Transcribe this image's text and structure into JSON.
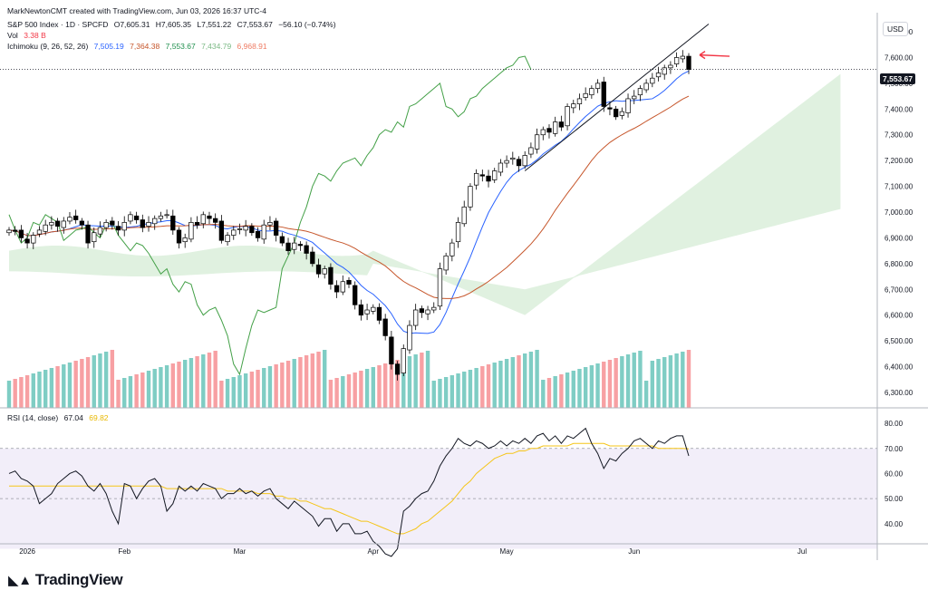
{
  "header": {
    "author_line": "MarkNewtonCMT created with TradingView.com, Jun 03, 2026 16:37 UTC-4",
    "symbol": "S&P 500 Index · 1D · SPCFD",
    "open": "O7,605.31",
    "high": "H7,605.35",
    "low": "L7,551.22",
    "close": "C7,553.67",
    "change": "−56.10 (−0.74%)",
    "vol_label": "Vol",
    "vol_value": "3.38 B",
    "ichimoku_label": "Ichimoku (9, 26, 52, 26)",
    "ichimoku_values": [
      "7,505.19",
      "7,364.38",
      "7,553.67",
      "7,434.79",
      "6,968.91"
    ],
    "rsi_label": "RSI (14, close)",
    "rsi_value": "67.04",
    "rsi_ma_value": "69.82"
  },
  "currency_button": "USD",
  "last_price_tag": "7,553.67",
  "logo_text": "TradingView",
  "colors": {
    "up_candle": "#ffffff",
    "down_candle": "#000000",
    "tenkan": "#2962ff",
    "kijun": "#c6562b",
    "chikou": "#43a047",
    "cloud_bull": "#a5d6a7",
    "cloud_bear": "#f8bbd0",
    "vol_up": "#7fcdc4",
    "vol_down": "#f7a0a3",
    "rsi_line": "#131722",
    "rsi_ma": "#f5c518",
    "rsi_band": "#ede7f6",
    "arrow": "#f23645"
  },
  "chart_data": [
    {
      "type": "candlestick",
      "title": "S&P 500 Index · 1D · SPCFD",
      "price_axis_ticks": [
        "7,700.00",
        "7,600.00",
        "7,500.00",
        "7,400.00",
        "7,300.00",
        "7,200.00",
        "7,100.00",
        "7,000.00",
        "6,900.00",
        "6,800.00",
        "6,700.00",
        "6,600.00",
        "6,500.00",
        "6,400.00",
        "6,300.00"
      ],
      "ylim": [
        6240,
        7760
      ],
      "time_axis_labels": [
        "2026",
        "Feb",
        "Mar",
        "Apr",
        "May",
        "Jun",
        "Jul"
      ],
      "close": [
        6930,
        6925,
        6900,
        6880,
        6910,
        6930,
        6950,
        6960,
        6945,
        6965,
        6980,
        6970,
        6950,
        6880,
        6920,
        6940,
        6960,
        6950,
        6930,
        6960,
        6990,
        6970,
        6940,
        6960,
        6975,
        6985,
        6990,
        6930,
        6880,
        6900,
        6960,
        6950,
        6990,
        6975,
        6960,
        6890,
        6910,
        6930,
        6935,
        6945,
        6920,
        6900,
        6950,
        6960,
        6910,
        6880,
        6850,
        6880,
        6870,
        6840,
        6800,
        6760,
        6780,
        6720,
        6690,
        6730,
        6720,
        6640,
        6600,
        6620,
        6630,
        6580,
        6520,
        6410,
        6370,
        6470,
        6560,
        6620,
        6610,
        6620,
        6630,
        6780,
        6830,
        6880,
        6960,
        7020,
        7100,
        7150,
        7140,
        7120,
        7160,
        7190,
        7200,
        7210,
        7180,
        7220,
        7250,
        7300,
        7320,
        7310,
        7350,
        7330,
        7410,
        7420,
        7440,
        7460,
        7480,
        7500,
        7410,
        7400,
        7370,
        7390,
        7440,
        7450,
        7480,
        7500,
        7520,
        7540,
        7560,
        7570,
        7600,
        7605,
        7553.67
      ],
      "volume_axis_note": "",
      "ichimoku": {
        "tenkan_last": 7505.19,
        "kijun_last": 7364.38,
        "chikou_last": 7553.67,
        "senkou_a_last": 7434.79,
        "senkou_b_last": 6968.91
      },
      "annotations": [
        "trendline along recent lows",
        "red arrow pointing to last candle"
      ]
    },
    {
      "type": "line",
      "title": "RSI (14, close)",
      "yticks": [
        "80.00",
        "70.00",
        "60.00",
        "50.00",
        "40.00"
      ],
      "ylim": [
        32,
        84
      ],
      "series": [
        {
          "name": "RSI",
          "values": [
            60,
            61,
            58,
            57,
            55,
            48,
            50,
            52,
            56,
            58,
            60,
            61,
            59,
            55,
            53,
            56,
            52,
            45,
            40,
            56,
            55,
            50,
            54,
            57,
            58,
            55,
            45,
            48,
            55,
            53,
            55,
            53,
            56,
            55,
            54,
            50,
            52,
            52,
            54,
            52,
            53,
            51,
            53,
            54,
            50,
            48,
            46,
            49,
            47,
            45,
            43,
            39,
            42,
            42,
            37,
            40,
            40,
            36,
            36,
            37,
            33,
            31,
            28,
            27,
            30,
            45,
            47,
            50,
            52,
            53,
            57,
            63,
            67,
            70,
            74,
            72,
            71,
            73,
            72,
            70,
            71,
            73,
            71,
            73,
            72,
            74,
            72,
            75,
            76,
            73,
            75,
            72,
            75,
            74,
            76,
            78,
            72,
            68,
            62,
            66,
            65,
            68,
            70,
            73,
            74,
            72,
            70,
            73,
            72,
            74,
            75,
            75,
            67.04
          ]
        },
        {
          "name": "RSI MA",
          "values": [
            55,
            55,
            55,
            55,
            55,
            55,
            55,
            55,
            55,
            55,
            55,
            55,
            55,
            55,
            55,
            55,
            55,
            55,
            55,
            55,
            55,
            55,
            55,
            55,
            55,
            55,
            54,
            54,
            54,
            54,
            54,
            54,
            54,
            54,
            54,
            54,
            53,
            53,
            53,
            53,
            53,
            52,
            52,
            52,
            51,
            51,
            50,
            50,
            49,
            49,
            48,
            47,
            46,
            46,
            45,
            44,
            43,
            42,
            41,
            41,
            40,
            39,
            38,
            37,
            36,
            36,
            37,
            38,
            40,
            41,
            43,
            45,
            47,
            49,
            52,
            55,
            57,
            60,
            62,
            64,
            66,
            67,
            68,
            68,
            69,
            69,
            70,
            70,
            71,
            71,
            71,
            71,
            71,
            72,
            72,
            72,
            72,
            72,
            72,
            71,
            71,
            71,
            71,
            71,
            71,
            71,
            71,
            70,
            70,
            70,
            70,
            70,
            69.82
          ]
        }
      ],
      "reference_lines": [
        70,
        50
      ]
    }
  ]
}
